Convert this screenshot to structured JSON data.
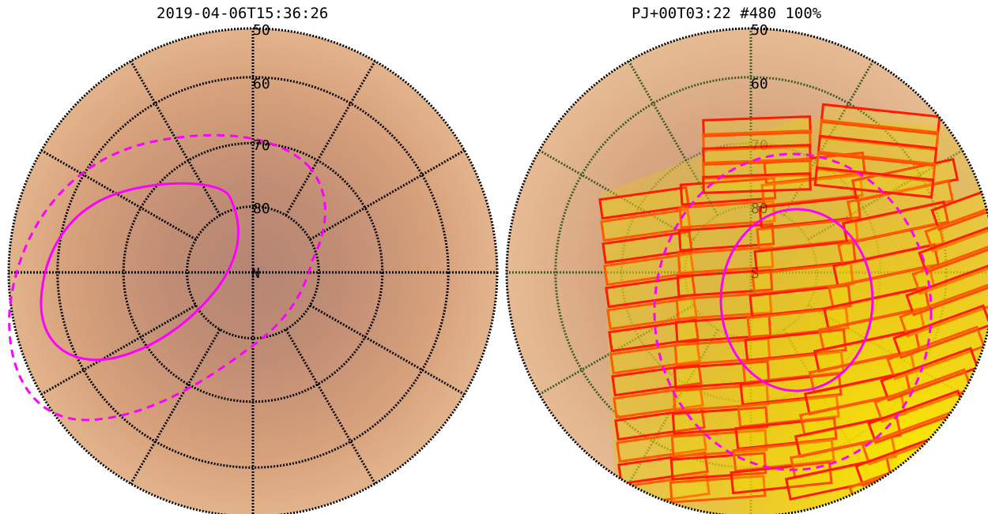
{
  "left_map": {
    "title": "2019-04-06T15:36:26",
    "pole_label": "N",
    "latitude_labels": [
      "50",
      "60",
      "70",
      "80"
    ]
  },
  "right_map": {
    "title": "PJ+00T03:22 #480 100%",
    "pole_label": "S",
    "latitude_labels": [
      "50",
      "60",
      "70",
      "80"
    ]
  },
  "colors": {
    "planet_surface": "#d7a07a",
    "planet_center": "#b58675",
    "grid": "#000000",
    "aurora_oval": "#ff00ff",
    "footprint_edge": "#ff1a00",
    "footprint_fill": "#f2dc00"
  }
}
